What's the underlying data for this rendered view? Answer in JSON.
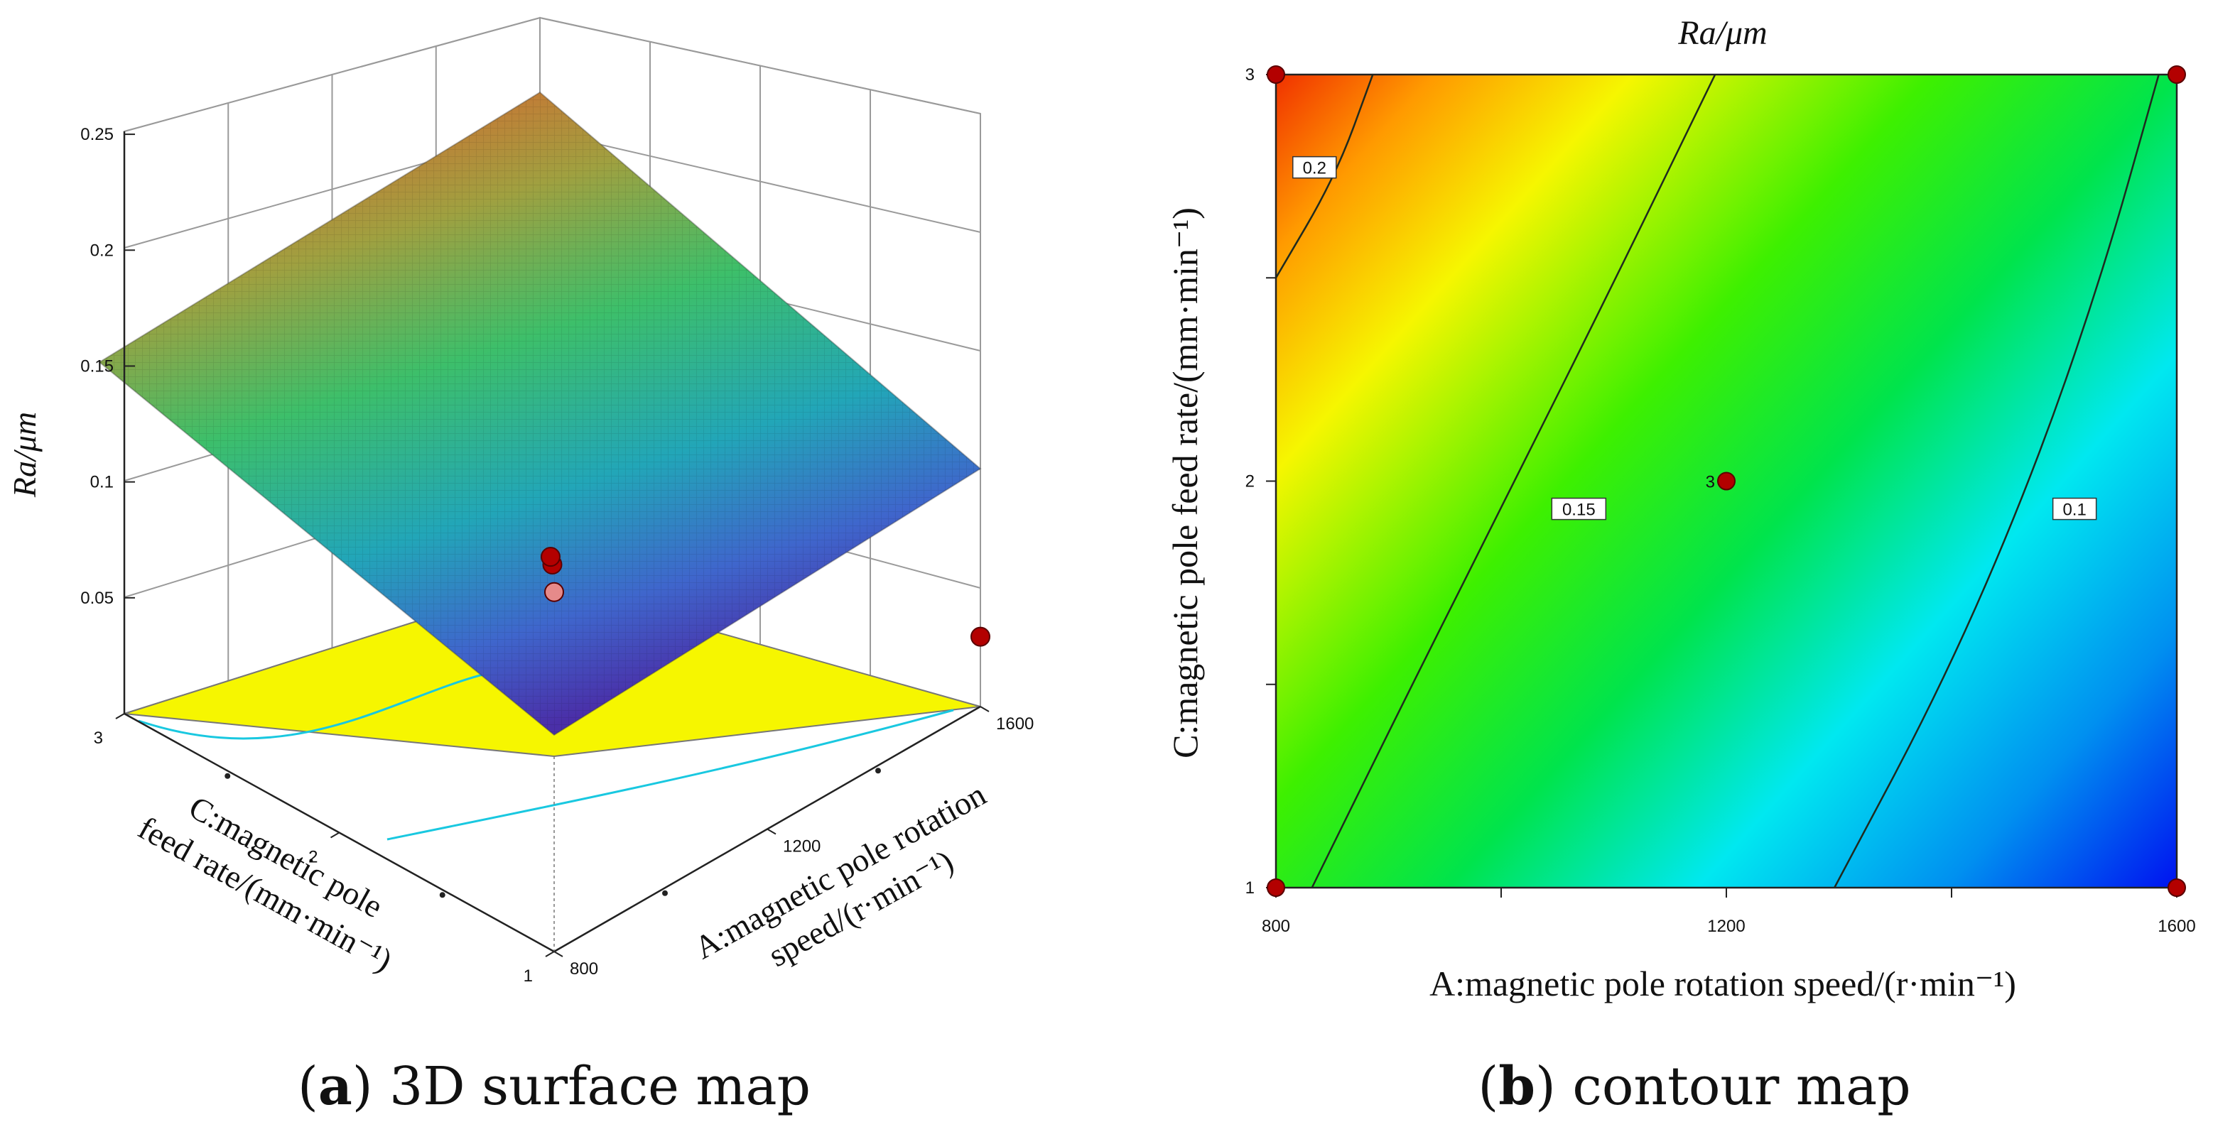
{
  "panels": {
    "a": {
      "caption_letter": "a",
      "caption_rest": ") 3D surface map"
    },
    "b": {
      "caption_letter": "b",
      "caption_rest": ") contour map"
    }
  },
  "colors": {
    "floor": "#f6f600",
    "design_point": "#b30000",
    "contour_line": "#1f2a1f"
  },
  "chart_data": [
    {
      "type": "surface3d",
      "panel": "a",
      "zlabel": "Ra/μm",
      "xlabel_lines": [
        "A:magnetic pole rotation",
        "speed/(r·min⁻¹)"
      ],
      "ylabel_lines": [
        "C:magnetic pole",
        "feed rate/(mm·min⁻¹)"
      ],
      "x_ticks": [
        "800",
        "1200",
        "1600"
      ],
      "y_ticks": [
        "1",
        "2",
        "3"
      ],
      "z_ticks": [
        "0.05",
        "0.1",
        "0.15",
        "0.2",
        "0.25"
      ],
      "xlim": [
        800,
        1600
      ],
      "ylim": [
        1,
        3
      ],
      "zlim": [
        0,
        0.25
      ],
      "surface_corners": [
        {
          "x": 800,
          "y": 1,
          "z": 0.146
        },
        {
          "x": 1600,
          "y": 1,
          "z": 0.065
        },
        {
          "x": 1600,
          "y": 3,
          "z": 0.097
        },
        {
          "x": 800,
          "y": 3,
          "z": 0.232
        }
      ],
      "design_points": [
        {
          "x": 800,
          "y": 1,
          "z": 0.146
        },
        {
          "x": 1200,
          "y": 2,
          "z": 0.13
        },
        {
          "x": 1600,
          "y": 3,
          "z": 0.097
        },
        {
          "x": 1600,
          "y": 1,
          "z": 0.065
        }
      ]
    },
    {
      "type": "contour",
      "panel": "b",
      "title": "Ra/μm",
      "xlabel": "A:magnetic pole rotation speed/(r·min⁻¹)",
      "ylabel": "C:magnetic pole feed rate/(mm·min⁻¹)",
      "x_ticks": [
        "800",
        "1200",
        "1600"
      ],
      "y_ticks": [
        "1",
        "2",
        "3"
      ],
      "xlim": [
        800,
        1600
      ],
      "ylim": [
        1,
        3
      ],
      "zrange": [
        0.07,
        0.23
      ],
      "contours": [
        {
          "level": 0.2,
          "label": "0.2",
          "points": [
            [
              800,
              2.5
            ],
            [
              853,
              2.75
            ],
            [
              886,
              3
            ]
          ],
          "label_at": [
            815,
            2.77
          ]
        },
        {
          "level": 0.15,
          "label": "0.15",
          "points": [
            [
              832,
              1
            ],
            [
              921,
              1.5
            ],
            [
              1012,
              2
            ],
            [
              1102,
              2.5
            ],
            [
              1190,
              3
            ]
          ],
          "label_at": [
            1045,
            1.93
          ]
        },
        {
          "level": 0.1,
          "label": "0.1",
          "points": [
            [
              1296,
              1
            ],
            [
              1392,
              1.5
            ],
            [
              1470,
              2
            ],
            [
              1533,
              2.5
            ],
            [
              1584,
              3
            ]
          ],
          "label_at": [
            1490,
            1.93
          ]
        }
      ],
      "design_points": [
        {
          "x": 800,
          "y": 1
        },
        {
          "x": 1600,
          "y": 1
        },
        {
          "x": 800,
          "y": 3
        },
        {
          "x": 1600,
          "y": 3
        },
        {
          "x": 1200,
          "y": 2,
          "label": "3"
        }
      ]
    }
  ]
}
